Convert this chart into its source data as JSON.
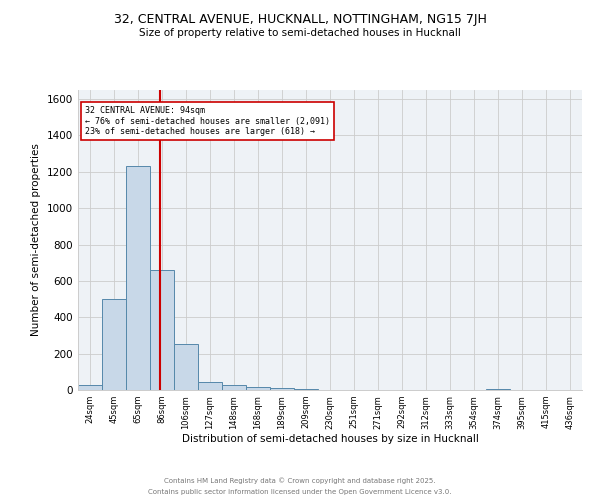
{
  "title_line1": "32, CENTRAL AVENUE, HUCKNALL, NOTTINGHAM, NG15 7JH",
  "title_line2": "Size of property relative to semi-detached houses in Hucknall",
  "xlabel": "Distribution of semi-detached houses by size in Hucknall",
  "ylabel": "Number of semi-detached properties",
  "bar_labels": [
    "24sqm",
    "45sqm",
    "65sqm",
    "86sqm",
    "106sqm",
    "127sqm",
    "148sqm",
    "168sqm",
    "189sqm",
    "209sqm",
    "230sqm",
    "251sqm",
    "271sqm",
    "292sqm",
    "312sqm",
    "333sqm",
    "354sqm",
    "374sqm",
    "395sqm",
    "415sqm",
    "436sqm"
  ],
  "bar_values": [
    30,
    500,
    1230,
    660,
    255,
    45,
    25,
    15,
    10,
    5,
    0,
    0,
    0,
    0,
    0,
    0,
    0,
    5,
    0,
    0,
    0
  ],
  "bar_color": "#c8d8e8",
  "bar_edgecolor": "#5588aa",
  "vline_color": "#cc0000",
  "annotation_title": "32 CENTRAL AVENUE: 94sqm",
  "annotation_line2": "← 76% of semi-detached houses are smaller (2,091)",
  "annotation_line3": "23% of semi-detached houses are larger (618) →",
  "annotation_box_color": "#cc0000",
  "ylim": [
    0,
    1650
  ],
  "yticks": [
    0,
    200,
    400,
    600,
    800,
    1000,
    1200,
    1400,
    1600
  ],
  "grid_color": "#cccccc",
  "background_color": "#eef2f6",
  "footer_line1": "Contains HM Land Registry data © Crown copyright and database right 2025.",
  "footer_line2": "Contains public sector information licensed under the Open Government Licence v3.0."
}
